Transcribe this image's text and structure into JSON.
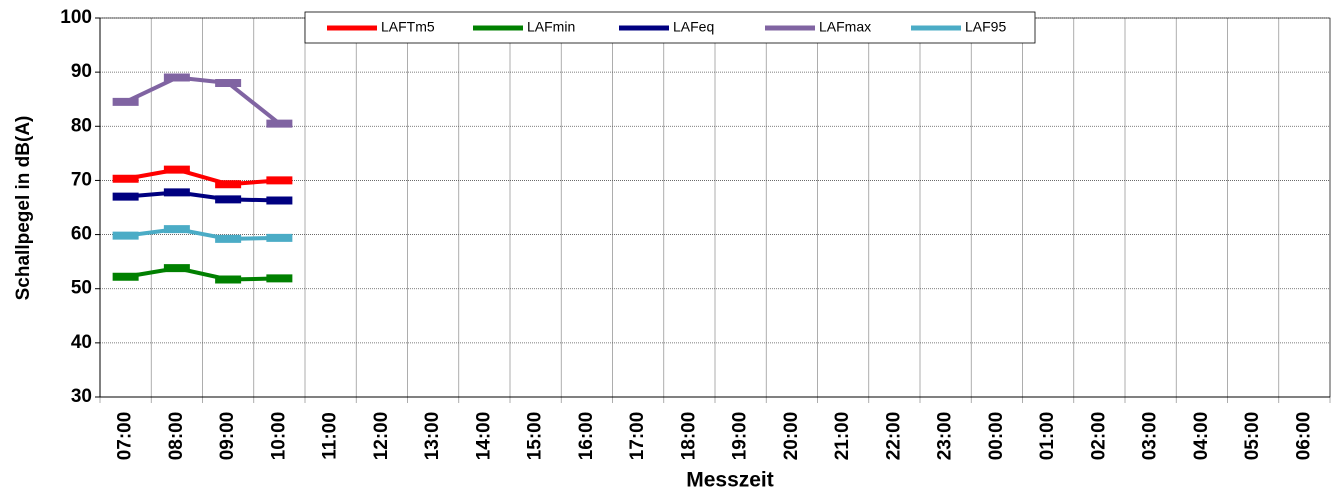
{
  "chart_data": {
    "type": "line",
    "y_label": "Schallpegel in dB(A)",
    "x_label": "Messzeit",
    "categories": [
      "07:00",
      "08:00",
      "09:00",
      "10:00",
      "11:00",
      "12:00",
      "13:00",
      "14:00",
      "15:00",
      "16:00",
      "17:00",
      "18:00",
      "19:00",
      "20:00",
      "21:00",
      "22:00",
      "23:00",
      "00:00",
      "01:00",
      "02:00",
      "03:00",
      "04:00",
      "05:00",
      "06:00"
    ],
    "series": [
      {
        "name": "LAFTm5",
        "color": "#ff0000",
        "values": [
          70.3,
          72,
          69.3,
          70,
          null,
          null,
          null,
          null,
          null,
          null,
          null,
          null,
          null,
          null,
          null,
          null,
          null,
          null,
          null,
          null,
          null,
          null,
          null,
          null
        ]
      },
      {
        "name": "LAFmin",
        "color": "#008000",
        "values": [
          52.2,
          53.8,
          51.7,
          51.9,
          null,
          null,
          null,
          null,
          null,
          null,
          null,
          null,
          null,
          null,
          null,
          null,
          null,
          null,
          null,
          null,
          null,
          null,
          null,
          null
        ]
      },
      {
        "name": "LAFeq",
        "color": "#000080",
        "values": [
          67,
          67.8,
          66.5,
          66.3,
          null,
          null,
          null,
          null,
          null,
          null,
          null,
          null,
          null,
          null,
          null,
          null,
          null,
          null,
          null,
          null,
          null,
          null,
          null,
          null
        ]
      },
      {
        "name": "LAFmax",
        "color": "#8064a2",
        "values": [
          84.5,
          89,
          88,
          80.5,
          null,
          null,
          null,
          null,
          null,
          null,
          null,
          null,
          null,
          null,
          null,
          null,
          null,
          null,
          null,
          null,
          null,
          null,
          null,
          null
        ]
      },
      {
        "name": "LAF95",
        "color": "#4bacc6",
        "values": [
          59.8,
          61,
          59.2,
          59.4,
          null,
          null,
          null,
          null,
          null,
          null,
          null,
          null,
          null,
          null,
          null,
          null,
          null,
          null,
          null,
          null,
          null,
          null,
          null,
          null
        ]
      }
    ],
    "ylim": [
      30,
      100
    ],
    "yticks": [
      30,
      40,
      50,
      60,
      70,
      80,
      90,
      100
    ],
    "grid": true,
    "legend": "top"
  }
}
